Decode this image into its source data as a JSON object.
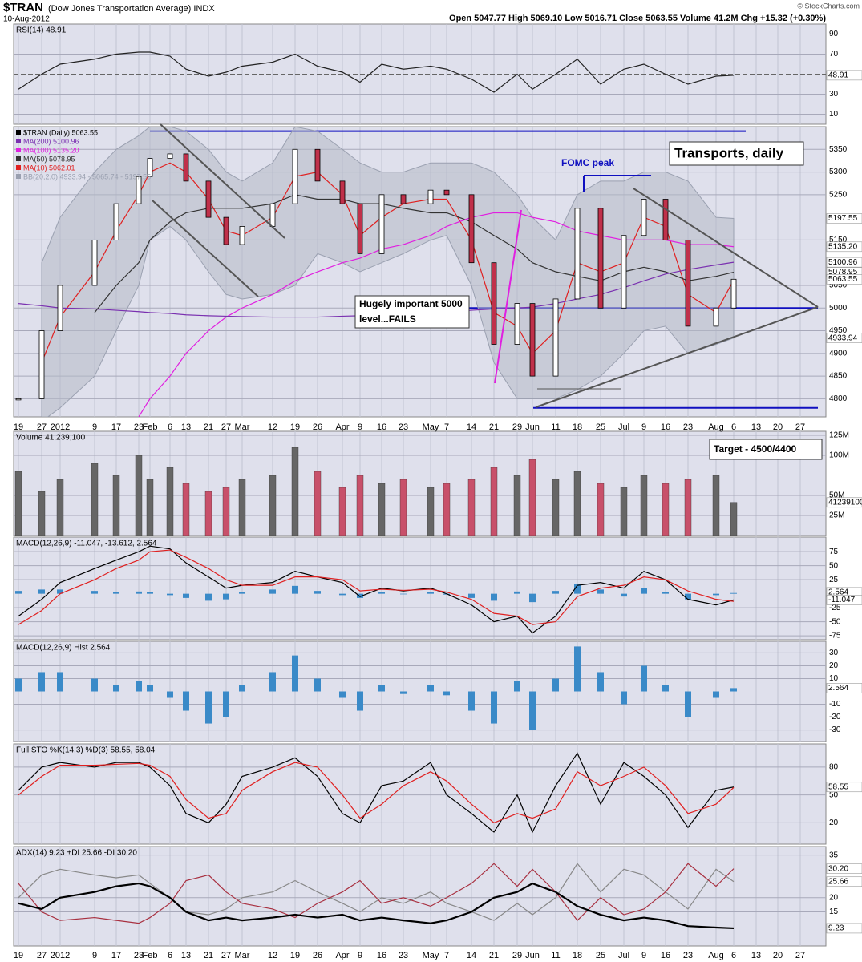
{
  "header": {
    "symbol": "$TRAN",
    "name": "(Dow Jones Transportation Average) INDX",
    "date": "10-Aug-2012",
    "quote": "Open 5047.77  High 5069.10  Low 5016.71  Close 5063.55  Volume 41.2M  Chg +15.32 (+0.30%)",
    "credit": "© StockCharts.com"
  },
  "annotations": {
    "fomc": "FOMC peak",
    "level": [
      "Hugely important 5000",
      "level...FAILS"
    ],
    "transports": "Transports, daily",
    "target": "Target - 4500/4400"
  },
  "chart_data": [
    {
      "type": "line",
      "title": "RSI(14) 48.91",
      "ylim": [
        0,
        100
      ],
      "yticks": [
        10,
        30,
        70,
        90
      ],
      "midline": 50,
      "tags": [
        {
          "value": 48.91,
          "label": "48.91"
        }
      ],
      "series": [
        {
          "kind": "line",
          "color": "#222222",
          "values": [
            35,
            50,
            60,
            65,
            70,
            72,
            72,
            68,
            55,
            48,
            52,
            58,
            62,
            70,
            58,
            52,
            42,
            60,
            55,
            58,
            55,
            45,
            32,
            50,
            35,
            50,
            65,
            40,
            55,
            60,
            50,
            40,
            48,
            48.91,
            null,
            null,
            null
          ]
        }
      ]
    },
    {
      "type": "price",
      "ylim": [
        4760,
        5400
      ],
      "categories": [
        "19",
        "27",
        "2012",
        "9",
        "17",
        "23",
        "Feb",
        "6",
        "13",
        "21",
        "27",
        "Mar",
        "12",
        "19",
        "26",
        "Apr",
        "9",
        "16",
        "23",
        "May",
        "7",
        "14",
        "21",
        "29",
        "Jun",
        "11",
        "18",
        "25",
        "Jul",
        "9",
        "16",
        "23",
        "Aug",
        "6",
        "13",
        "20",
        "27"
      ],
      "yticks": [
        4800,
        4850,
        4900,
        4950,
        5000,
        5050,
        5150,
        5250,
        5300,
        5350
      ],
      "levels": [
        5390,
        5000,
        4780
      ],
      "level_color": "#1010c0",
      "tags": [
        {
          "value": 5197.55,
          "label": "5197.55"
        },
        {
          "value": 5135.2,
          "label": "5135.20"
        },
        {
          "value": 5100.96,
          "label": "5100.96"
        },
        {
          "value": 5078.95,
          "label": "5078.95"
        },
        {
          "value": 5063.55,
          "label": "5063.55"
        },
        {
          "value": 4933.94,
          "label": "4933.94"
        }
      ],
      "series": [
        {
          "kind": "band",
          "name": "BB(20,2.0) 4933.94 - 5065.74 - 5197.55",
          "color": "#9aa0b0",
          "upper": [
            null,
            5100,
            5200,
            5300,
            5350,
            5380,
            5400,
            5400,
            5390,
            5350,
            5300,
            5280,
            5320,
            5400,
            5390,
            5350,
            5320,
            5300,
            5300,
            5320,
            5320,
            5320,
            5300,
            5250,
            5200,
            5150,
            5250,
            5280,
            5280,
            5300,
            5300,
            5280,
            5200,
            5197.55,
            null,
            null,
            null
          ],
          "lower": [
            null,
            4750,
            4780,
            4850,
            4950,
            5050,
            5150,
            5180,
            5150,
            5080,
            5030,
            5020,
            5030,
            5050,
            5120,
            5100,
            5080,
            5100,
            5120,
            5150,
            5160,
            5050,
            4880,
            4800,
            4800,
            4800,
            4820,
            4850,
            4900,
            4950,
            4960,
            4900,
            4920,
            4933.94,
            null,
            null,
            null
          ]
        },
        {
          "kind": "line",
          "name": "MA(10) 5062.01",
          "color": "#e02020",
          "values": [
            null,
            4880,
            4980,
            5080,
            5170,
            5250,
            5300,
            5320,
            5300,
            5240,
            5170,
            5160,
            5200,
            5290,
            5300,
            5250,
            5160,
            5200,
            5230,
            5240,
            5240,
            5150,
            4990,
            4960,
            4900,
            4950,
            5100,
            5080,
            5100,
            5200,
            5180,
            5030,
            4990,
            5062.01,
            null,
            null,
            null
          ]
        },
        {
          "kind": "line",
          "name": "MA(50) 5078.95",
          "color": "#333333",
          "values": [
            null,
            null,
            null,
            4990,
            5050,
            5100,
            5150,
            5190,
            5210,
            5220,
            5220,
            5220,
            5230,
            5250,
            5240,
            5240,
            5230,
            5230,
            5220,
            5210,
            5210,
            5190,
            5160,
            5130,
            5100,
            5080,
            5070,
            5060,
            5080,
            5090,
            5080,
            5060,
            5070,
            5078.95,
            null,
            null,
            null
          ]
        },
        {
          "kind": "line",
          "name": "MA(100) 5135.20",
          "color": "#e020e0",
          "values": [
            null,
            null,
            null,
            null,
            null,
            4760,
            4800,
            4850,
            4900,
            4950,
            4980,
            5000,
            5030,
            5060,
            5080,
            5100,
            5110,
            5130,
            5140,
            5160,
            5180,
            5200,
            5210,
            5210,
            5200,
            5190,
            5170,
            5160,
            5150,
            5150,
            5150,
            5140,
            5140,
            5135.2,
            null,
            null,
            null
          ]
        },
        {
          "kind": "line",
          "name": "MA(200) 5100.96",
          "color": "#7a30b0",
          "values": [
            5010,
            5005,
            5000,
            4998,
            4995,
            4992,
            4990,
            4988,
            4985,
            4983,
            4982,
            4981,
            4980,
            4980,
            4980,
            4982,
            4983,
            4985,
            4987,
            4990,
            4992,
            4995,
            4998,
            5000,
            5002,
            5010,
            5020,
            5030,
            5045,
            5060,
            5075,
            5085,
            5095,
            5100.96,
            null,
            null,
            null
          ]
        },
        {
          "kind": "candle",
          "name": "$TRAN (Daily) 5063.55",
          "color": "#000000",
          "down_color": "#c0304a",
          "values": [
            4800,
            4950,
            5050,
            5150,
            5230,
            5290,
            5330,
            5340,
            5280,
            5200,
            5140,
            5180,
            5230,
            5350,
            5280,
            5230,
            5120,
            5250,
            5230,
            5260,
            5250,
            5100,
            4920,
            5010,
            4850,
            5020,
            5220,
            5000,
            5160,
            5240,
            5150,
            4960,
            5000,
            5063.55,
            null,
            null,
            null
          ]
        }
      ]
    },
    {
      "type": "bar",
      "title": "Volume 41,239,100",
      "ylim": [
        0,
        130000000
      ],
      "yticks": [
        {
          "value": 25000000,
          "label": "25M"
        },
        {
          "value": 50000000,
          "label": "50M"
        },
        {
          "value": 100000000,
          "label": "100M"
        },
        {
          "value": 125000000,
          "label": "125M"
        }
      ],
      "tags": [
        {
          "value": 41239100,
          "label": "41239100"
        }
      ],
      "series": [
        {
          "kind": "volume",
          "color": "#666666",
          "down_color": "#c8506a",
          "values": [
            80000000,
            55000000,
            70000000,
            90000000,
            75000000,
            100000000,
            70000000,
            85000000,
            65000000,
            55000000,
            60000000,
            70000000,
            75000000,
            110000000,
            80000000,
            60000000,
            75000000,
            65000000,
            70000000,
            60000000,
            65000000,
            70000000,
            85000000,
            75000000,
            95000000,
            70000000,
            80000000,
            65000000,
            60000000,
            75000000,
            65000000,
            70000000,
            75000000,
            41239100,
            null,
            null,
            null
          ]
        }
      ]
    },
    {
      "type": "line",
      "title": "MACD(12,26,9) -11.047, -13.612, 2.564",
      "ylim": [
        -82,
        101
      ],
      "yticks": [
        -75,
        -50,
        -25,
        25,
        50,
        75
      ],
      "tags": [
        {
          "value": 2.564,
          "label": "2.564"
        },
        {
          "value": -11.047,
          "label": "-11.047"
        }
      ],
      "series": [
        {
          "kind": "bar",
          "color": "#3a8ac8",
          "scale": 0.5,
          "values": [
            10,
            15,
            15,
            10,
            5,
            8,
            5,
            -5,
            -15,
            -25,
            -20,
            5,
            15,
            28,
            10,
            -5,
            -15,
            5,
            -2,
            5,
            -3,
            -15,
            -25,
            8,
            -30,
            10,
            35,
            15,
            -10,
            20,
            5,
            -20,
            -5,
            2.564,
            null,
            null,
            null
          ]
        },
        {
          "kind": "line",
          "color": "#000000",
          "values": [
            -40,
            -10,
            20,
            45,
            60,
            75,
            85,
            80,
            55,
            30,
            10,
            15,
            20,
            40,
            30,
            20,
            -5,
            10,
            5,
            10,
            0,
            -20,
            -50,
            -40,
            -70,
            -40,
            15,
            20,
            10,
            40,
            25,
            -10,
            -20,
            -11.047,
            null,
            null,
            null
          ]
        },
        {
          "kind": "line",
          "color": "#e02020",
          "values": [
            -55,
            -30,
            0,
            25,
            45,
            60,
            75,
            78,
            65,
            45,
            25,
            15,
            15,
            30,
            30,
            25,
            5,
            8,
            6,
            8,
            3,
            -10,
            -35,
            -40,
            -55,
            -50,
            -5,
            10,
            15,
            30,
            25,
            5,
            -10,
            -13.612,
            null,
            null,
            null
          ]
        }
      ]
    },
    {
      "type": "bar",
      "title": "MACD(12,26,9) Hist 2.564",
      "ylim": [
        -39,
        39
      ],
      "yticks": [
        -30,
        -20,
        -10,
        10,
        20,
        30
      ],
      "tags": [
        {
          "value": 2.564,
          "label": "2.564"
        }
      ],
      "series": [
        {
          "kind": "bar",
          "color": "#3a8ac8",
          "values": [
            10,
            15,
            15,
            10,
            5,
            8,
            5,
            -5,
            -15,
            -25,
            -20,
            5,
            15,
            28,
            10,
            -5,
            -15,
            5,
            -2,
            5,
            -3,
            -15,
            -25,
            8,
            -30,
            10,
            35,
            15,
            -10,
            20,
            5,
            -20,
            -5,
            2.564,
            null,
            null,
            null
          ]
        }
      ]
    },
    {
      "type": "line",
      "title": "Full STO %K(14,3) %D(3) 58.55, 58.04",
      "ylim": [
        -3,
        105
      ],
      "yticks": [
        20,
        50,
        80
      ],
      "tags": [
        {
          "value": 58.55,
          "label": "58.55"
        }
      ],
      "series": [
        {
          "kind": "line",
          "color": "#000000",
          "values": [
            55,
            80,
            85,
            80,
            85,
            85,
            80,
            60,
            30,
            20,
            40,
            70,
            80,
            90,
            70,
            30,
            20,
            60,
            65,
            85,
            50,
            30,
            10,
            50,
            10,
            60,
            95,
            40,
            85,
            70,
            50,
            15,
            55,
            58.55,
            null,
            null,
            null
          ]
        },
        {
          "kind": "line",
          "color": "#e02020",
          "values": [
            50,
            70,
            82,
            82,
            83,
            84,
            82,
            70,
            45,
            25,
            30,
            55,
            75,
            85,
            80,
            50,
            25,
            40,
            60,
            75,
            65,
            40,
            20,
            30,
            25,
            35,
            75,
            60,
            70,
            80,
            60,
            30,
            40,
            58.04,
            null,
            null,
            null
          ]
        }
      ]
    },
    {
      "type": "line",
      "title": "ADX(14) 9.23 +DI 25.66 -DI 30.20",
      "ylim": [
        3,
        38
      ],
      "yticks": [
        15,
        20,
        35
      ],
      "tags": [
        {
          "value": 30.2,
          "label": "30.20"
        },
        {
          "value": 25.66,
          "label": "25.66"
        },
        {
          "value": 9.23,
          "label": "9.23"
        }
      ],
      "series": [
        {
          "kind": "line",
          "color": "#888888",
          "values": [
            20,
            28,
            30,
            28,
            27,
            28,
            25,
            20,
            15,
            14,
            16,
            20,
            22,
            26,
            22,
            18,
            15,
            20,
            18,
            22,
            18,
            15,
            12,
            18,
            14,
            20,
            32,
            22,
            30,
            28,
            22,
            16,
            30,
            25.66,
            null,
            null,
            null
          ]
        },
        {
          "kind": "line",
          "color": "#a83040",
          "values": [
            25,
            15,
            12,
            13,
            12,
            11,
            13,
            18,
            26,
            28,
            22,
            18,
            16,
            13,
            18,
            22,
            26,
            18,
            20,
            17,
            20,
            25,
            32,
            24,
            30,
            22,
            12,
            20,
            14,
            16,
            22,
            32,
            24,
            30.2,
            null,
            null,
            null
          ]
        },
        {
          "kind": "line",
          "color": "#000000",
          "width": 2.2,
          "values": [
            18,
            16,
            20,
            22,
            24,
            25,
            24,
            20,
            15,
            12,
            13,
            12,
            13,
            14,
            13,
            14,
            12,
            13,
            12,
            11,
            12,
            15,
            20,
            22,
            25,
            22,
            17,
            14,
            12,
            13,
            12,
            10,
            9.5,
            9.23,
            null,
            null,
            null
          ]
        }
      ]
    }
  ]
}
